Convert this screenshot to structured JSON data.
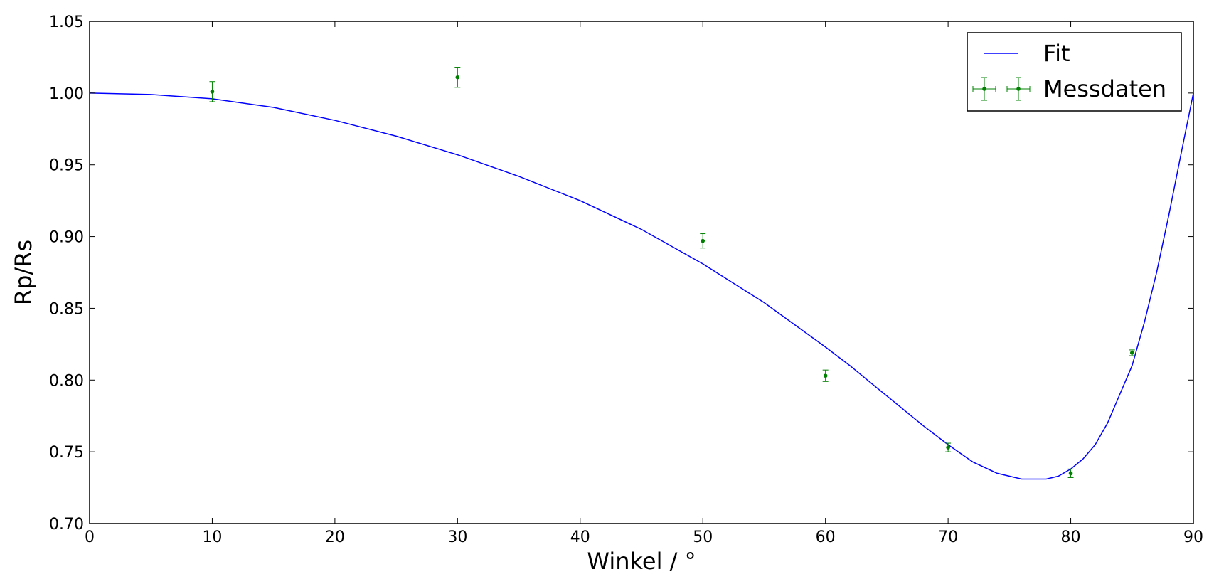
{
  "chart_data": {
    "type": "scatter",
    "xlabel": "Winkel / °",
    "ylabel": "Rp/Rs",
    "xlim": [
      0,
      90
    ],
    "ylim": [
      0.7,
      1.05
    ],
    "x_ticks": [
      0,
      10,
      20,
      30,
      40,
      50,
      60,
      70,
      80,
      90
    ],
    "y_ticks": [
      0.7,
      0.75,
      0.8,
      0.85,
      0.9,
      0.95,
      1.0,
      1.05
    ],
    "x_tick_labels": [
      "0",
      "10",
      "20",
      "30",
      "40",
      "50",
      "60",
      "70",
      "80",
      "90"
    ],
    "y_tick_labels": [
      "0.70",
      "0.75",
      "0.80",
      "0.85",
      "0.90",
      "0.95",
      "1.00",
      "1.05"
    ],
    "grid": false,
    "legend_position": "top-right",
    "series": [
      {
        "name": "Fit",
        "kind": "line",
        "color": "#0000ff",
        "x": [
          0,
          5,
          10,
          15,
          20,
          25,
          30,
          35,
          40,
          45,
          50,
          55,
          60,
          62,
          64,
          66,
          68,
          70,
          72,
          74,
          76,
          77,
          78,
          79,
          80,
          81,
          82,
          83,
          84,
          85,
          86,
          87,
          88,
          89,
          90
        ],
        "y": [
          1.0,
          0.999,
          0.996,
          0.99,
          0.981,
          0.97,
          0.957,
          0.942,
          0.925,
          0.905,
          0.881,
          0.854,
          0.823,
          0.81,
          0.796,
          0.782,
          0.768,
          0.755,
          0.743,
          0.735,
          0.731,
          0.731,
          0.731,
          0.733,
          0.738,
          0.745,
          0.755,
          0.77,
          0.79,
          0.81,
          0.84,
          0.875,
          0.915,
          0.958,
          1.0
        ]
      },
      {
        "name": "Messdaten",
        "kind": "errorbar",
        "color": "#008000",
        "x": [
          10,
          30,
          50,
          60,
          70,
          80,
          85
        ],
        "y": [
          1.001,
          1.011,
          0.897,
          0.803,
          0.753,
          0.735,
          0.819
        ],
        "yerr": [
          0.007,
          0.007,
          0.005,
          0.004,
          0.003,
          0.003,
          0.002
        ]
      }
    ]
  }
}
